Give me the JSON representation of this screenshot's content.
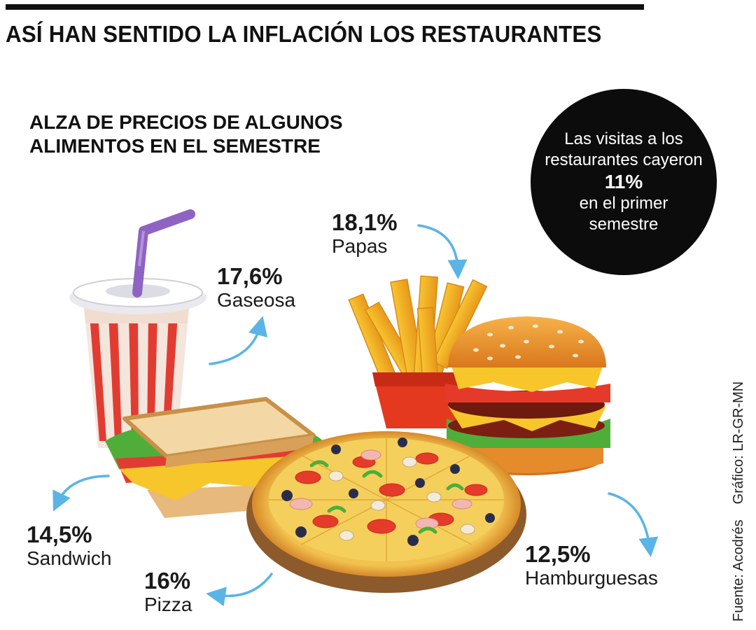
{
  "headline": "ASÍ HAN SENTIDO LA INFLACIÓN LOS RESTAURANTES",
  "subtitle": {
    "line1": "ALZA DE PRECIOS DE ALGUNOS",
    "line2": "ALIMENTOS EN EL SEMESTRE"
  },
  "callout": {
    "line1": "Las visitas a los",
    "line2": "restaurantes cayeron",
    "value": "11%",
    "line3": "en el primer",
    "line4": "semestre"
  },
  "items": [
    {
      "pct": "18,1%",
      "name": "Papas"
    },
    {
      "pct": "17,6%",
      "name": "Gaseosa"
    },
    {
      "pct": "14,5%",
      "name": "Sandwich"
    },
    {
      "pct": "16%",
      "name": "Pizza"
    },
    {
      "pct": "12,5%",
      "name": "Hamburguesas"
    }
  ],
  "credits": {
    "source": "Fuente: Acodrés",
    "graphic": "Gráfico: LR-GR-MN"
  },
  "colors": {
    "text": "#111111",
    "arrow": "#5ab4e6",
    "callout_bg": "#0c0c0c"
  },
  "icons": [
    "drink-cup-icon",
    "french-fries-icon",
    "burger-icon",
    "sandwich-icon",
    "pizza-icon",
    "curved-arrow-icon"
  ]
}
